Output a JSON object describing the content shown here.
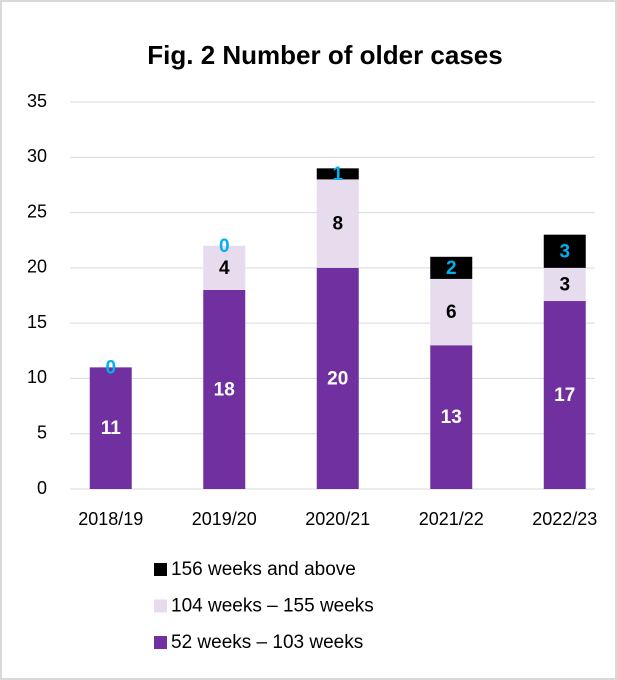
{
  "chart_data": {
    "type": "stacked_bar",
    "title": "Fig. 2 Number of older cases",
    "categories": [
      "2018/19",
      "2019/20",
      "2020/21",
      "2021/22",
      "2022/23"
    ],
    "series": [
      {
        "name": "52 weeks – 103 weeks",
        "color": "#7030a0",
        "label_color": "#ffffff",
        "values": [
          11,
          18,
          20,
          13,
          17
        ]
      },
      {
        "name": "104 weeks – 155 weeks",
        "color": "#e6dcee",
        "label_color": "#000000",
        "values": [
          0,
          4,
          8,
          6,
          3
        ],
        "value_labels": [
          null,
          "4",
          "8",
          "6",
          "3"
        ]
      },
      {
        "name": "156 weeks and above",
        "color": "#000000",
        "label_color": "#00b0f0",
        "values": [
          0,
          0,
          1,
          2,
          3
        ]
      }
    ],
    "ylim": [
      0,
      35
    ],
    "yticks": [
      0,
      5,
      10,
      15,
      20,
      25,
      30,
      35
    ],
    "grid": true,
    "legend": "bottom"
  }
}
